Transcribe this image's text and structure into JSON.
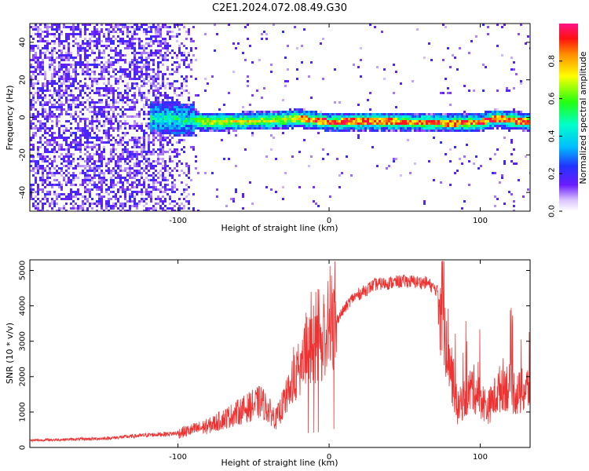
{
  "figure_title": "C2E1.2024.072.08.49.G30",
  "chart_data": [
    {
      "type": "heatmap",
      "title": "C2E1.2024.072.08.49.G30",
      "xlabel": "Height of straight line (km)",
      "ylabel": "Frequency (Hz)",
      "xlim": [
        -198,
        133
      ],
      "ylim": [
        -50,
        50
      ],
      "x_ticks": [
        -100,
        0,
        100
      ],
      "y_ticks": [
        -40,
        -20,
        0,
        20,
        40
      ],
      "colorbar": {
        "label": "Normalized spectral amplitude",
        "range": [
          0,
          1
        ],
        "ticks": [
          0.0,
          0.2,
          0.4,
          0.6,
          0.8
        ]
      },
      "ridge": {
        "freq_center": [
          {
            "x": -110,
            "f": 0.5
          },
          {
            "x": -80,
            "f": -2.0
          },
          {
            "x": -60,
            "f": -1.5
          },
          {
            "x": -40,
            "f": -1.0
          },
          {
            "x": -20,
            "f": 0.0
          },
          {
            "x": 0,
            "f": -2.0
          },
          {
            "x": 20,
            "f": -1.5
          },
          {
            "x": 60,
            "f": -2.0
          },
          {
            "x": 80,
            "f": -2.5
          },
          {
            "x": 100,
            "f": -2.0
          },
          {
            "x": 110,
            "f": 0.0
          },
          {
            "x": 133,
            "f": -2.0
          }
        ],
        "bandwidth_hz": 5
      }
    },
    {
      "type": "line",
      "xlabel": "Height of straight line (km)",
      "ylabel": "SNR (10 * v/v)",
      "xlim": [
        -198,
        133
      ],
      "ylim": [
        0,
        5300
      ],
      "x_ticks": [
        -100,
        0,
        100
      ],
      "y_ticks": [
        0,
        1000,
        2000,
        3000,
        4000,
        5000
      ],
      "line_color": "#ee3333",
      "envelope": [
        {
          "x": -198,
          "y": 200
        },
        {
          "x": -150,
          "y": 250
        },
        {
          "x": -120,
          "y": 350
        },
        {
          "x": -100,
          "y": 400
        },
        {
          "x": -80,
          "y": 600
        },
        {
          "x": -60,
          "y": 1000
        },
        {
          "x": -45,
          "y": 1300
        },
        {
          "x": -35,
          "y": 800
        },
        {
          "x": -25,
          "y": 1700
        },
        {
          "x": -15,
          "y": 2700
        },
        {
          "x": -5,
          "y": 2900
        },
        {
          "x": 5,
          "y": 3600
        },
        {
          "x": 15,
          "y": 4200
        },
        {
          "x": 30,
          "y": 4600
        },
        {
          "x": 50,
          "y": 4700
        },
        {
          "x": 65,
          "y": 4650
        },
        {
          "x": 75,
          "y": 4300
        },
        {
          "x": 80,
          "y": 2400
        },
        {
          "x": 85,
          "y": 1100
        },
        {
          "x": 95,
          "y": 1700
        },
        {
          "x": 105,
          "y": 1100
        },
        {
          "x": 115,
          "y": 1800
        },
        {
          "x": 125,
          "y": 1500
        },
        {
          "x": 133,
          "y": 1700
        }
      ]
    }
  ]
}
